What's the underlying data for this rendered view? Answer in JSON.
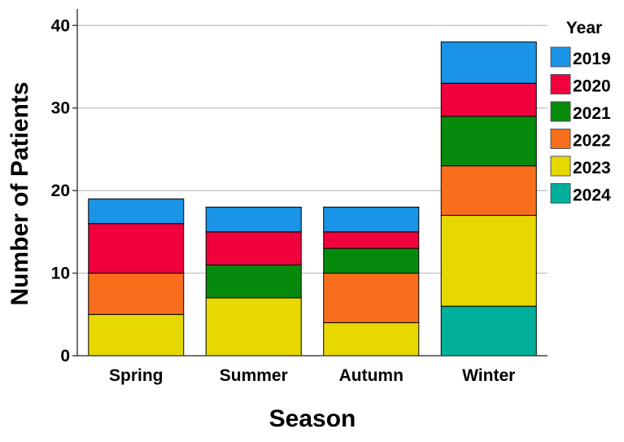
{
  "chart_data": {
    "type": "bar",
    "stacked": true,
    "title": "",
    "xlabel": "Season",
    "ylabel": "Number of Patients",
    "categories": [
      "Spring",
      "Summer",
      "Autumn",
      "Winter"
    ],
    "ylim": [
      0,
      42
    ],
    "yticks": [
      "0",
      "10",
      "20",
      "30",
      "40"
    ],
    "grid": true,
    "legend": {
      "title": "Year",
      "placement": "right"
    },
    "series": [
      {
        "name": "2024",
        "color": "#00b09b",
        "values": [
          0,
          0,
          0,
          6
        ]
      },
      {
        "name": "2023",
        "color": "#e6d800",
        "values": [
          5,
          7,
          4,
          11
        ]
      },
      {
        "name": "2022",
        "color": "#f86e1c",
        "values": [
          5,
          0,
          6,
          6
        ]
      },
      {
        "name": "2021",
        "color": "#068a0c",
        "values": [
          0,
          4,
          3,
          6
        ]
      },
      {
        "name": "2020",
        "color": "#f0003c",
        "values": [
          6,
          4,
          2,
          4
        ]
      },
      {
        "name": "2019",
        "color": "#1a94e6",
        "values": [
          3,
          3,
          3,
          5
        ]
      }
    ],
    "legend_order": [
      "2019",
      "2020",
      "2021",
      "2022",
      "2023",
      "2024"
    ]
  }
}
